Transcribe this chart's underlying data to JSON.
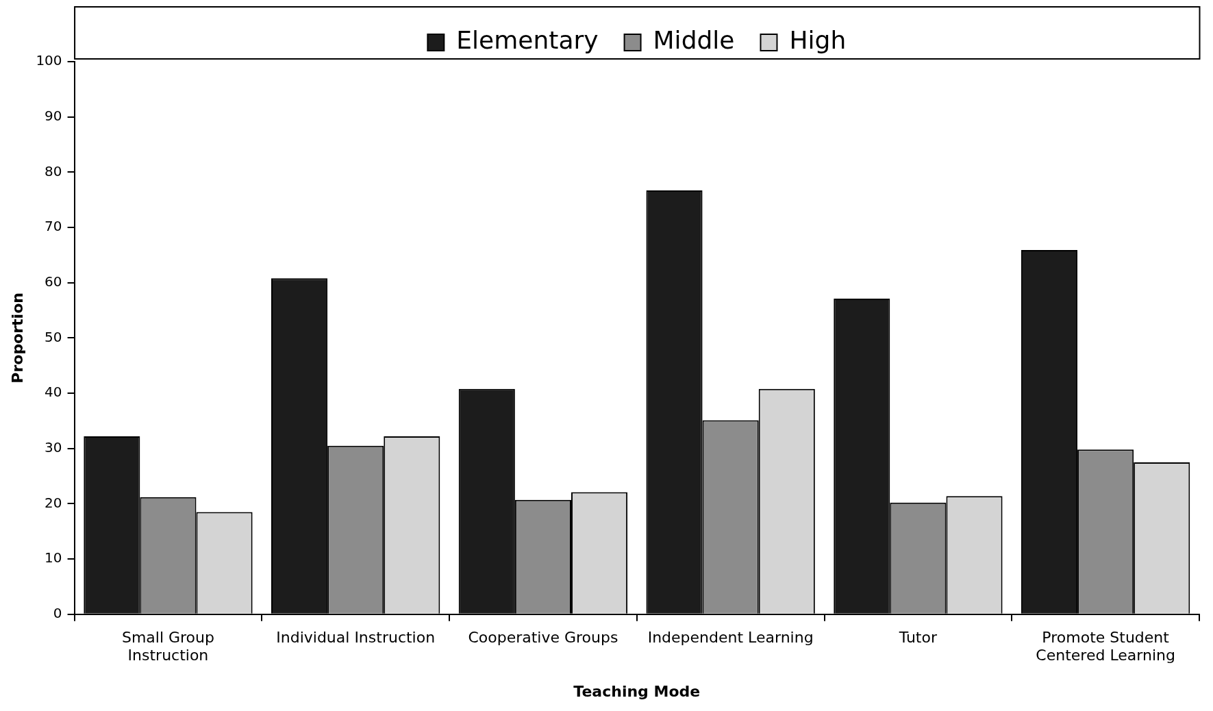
{
  "chart_data": {
    "type": "bar",
    "xlabel": "Teaching Mode",
    "ylabel": "Proportion",
    "categories": [
      "Small Group Instruction",
      "Individual Instruction",
      "Cooperative Groups",
      "Independent Learning",
      "Tutor",
      "Promote Student Centered Learning"
    ],
    "series": [
      {
        "name": "Elementary",
        "color": "#1c1c1c",
        "values": [
          32.2,
          60.8,
          40.8,
          76.7,
          57.1,
          65.9
        ]
      },
      {
        "name": "Middle",
        "color": "#8c8c8c",
        "values": [
          21.2,
          30.5,
          20.7,
          35.1,
          20.2,
          29.8
        ]
      },
      {
        "name": "High",
        "color": "#d4d4d4",
        "values": [
          18.5,
          32.2,
          22.1,
          40.8,
          21.4,
          27.5
        ]
      }
    ],
    "ylim": [
      0,
      100
    ],
    "yticks": [
      0,
      10,
      20,
      30,
      40,
      50,
      60,
      70,
      80,
      90,
      100
    ],
    "grid": false,
    "legend": "top"
  }
}
